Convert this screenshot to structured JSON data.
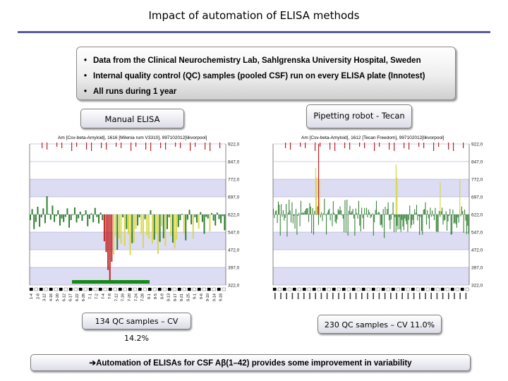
{
  "title": "Impact of automation of ELISA methods",
  "bullets": [
    "Data from the Clinical Neurochemistry Lab, Sahlgrenska University Hospital, Sweden",
    "Internal quality control (QC) samples (pooled CSF) run on every ELISA plate (Innotest)",
    "All runs during 1 year"
  ],
  "labels": {
    "manual": "Manual ELISA",
    "robot": "Pipetting robot - Tecan"
  },
  "stats": {
    "manual": "134 QC samples – CV 14.2%",
    "robot": "230 QC samples – CV 11.0%"
  },
  "conclusion": {
    "arrow": "➔",
    "text": "Automation of ELISAs for CSF Aβ(1–42) provides some improvement in variability"
  },
  "colors": {
    "title_rule": "#5a5a9e",
    "band": "#dcdcf2",
    "bar_green": "#2e7d2e",
    "bar_yellow": "#d8d84a",
    "bar_red": "#c02020"
  },
  "chart_data": [
    {
      "type": "bar",
      "header": "Am [Csv-beta-Amyloid], 1616 [Milenia rum V3310], 997102012[likvorpool]",
      "y_ticks": [
        "922,0",
        "847,0",
        "772,0",
        "697,0",
        "622,0",
        "547,0",
        "472,0",
        "397,0",
        "322,0"
      ],
      "ylim": [
        322,
        922
      ],
      "baseline": 622,
      "x_ticks": [
        "1-4",
        "2-8",
        "3-12",
        "4-16",
        "5-20",
        "6-12",
        "6-17",
        "6-22",
        "6-26",
        "7-1",
        "7-2",
        "7-4",
        "7-8",
        "7-12",
        "7-16",
        "7-20",
        "7-24",
        "7-28",
        "8-1",
        "8-5",
        "8-9",
        "8-13",
        "8-17",
        "8-21",
        "8-25",
        "9-1",
        "9-6",
        "9-10",
        "9-14",
        "9-18"
      ],
      "values": [
        598,
        645,
        560,
        590,
        655,
        570,
        610,
        648,
        585,
        700,
        625,
        600,
        660,
        590,
        615,
        640,
        575,
        605,
        590,
        612,
        648,
        566,
        598,
        622,
        652,
        588,
        606,
        634,
        595,
        618,
        640,
        572,
        604,
        627,
        589,
        650,
        611,
        584,
        630,
        598,
        508,
        462,
        386,
        343,
        421,
        452,
        530,
        472,
        520,
        498,
        610,
        488,
        560,
        538,
        450,
        500,
        502,
        560,
        575,
        610,
        540,
        480,
        602,
        535,
        520,
        640,
        498,
        515,
        540,
        455,
        506,
        572,
        521,
        488,
        560,
        610,
        531,
        502,
        478,
        515,
        569,
        598,
        625,
        540,
        512,
        600,
        642,
        580,
        520,
        610,
        588,
        562,
        632,
        590,
        540,
        612,
        605,
        550,
        628,
        596,
        575,
        630,
        602,
        585,
        615,
        555
      ],
      "colors": [
        "g",
        "g",
        "g",
        "g",
        "g",
        "g",
        "g",
        "g",
        "g",
        "g",
        "g",
        "g",
        "g",
        "g",
        "g",
        "g",
        "g",
        "g",
        "g",
        "g",
        "g",
        "g",
        "g",
        "g",
        "g",
        "g",
        "g",
        "g",
        "g",
        "g",
        "g",
        "g",
        "g",
        "g",
        "g",
        "g",
        "g",
        "g",
        "g",
        "g",
        "r",
        "r",
        "r",
        "r",
        "r",
        "y",
        "y",
        "g",
        "y",
        "y",
        "g",
        "y",
        "g",
        "y",
        "y",
        "g",
        "y",
        "y",
        "g",
        "g",
        "y",
        "y",
        "g",
        "y",
        "y",
        "g",
        "y",
        "g",
        "y",
        "y",
        "g",
        "y",
        "g",
        "y",
        "g",
        "g",
        "y",
        "g",
        "y",
        "y",
        "g",
        "g",
        "g",
        "y",
        "g",
        "g",
        "g",
        "g",
        "y",
        "g",
        "g",
        "y",
        "g",
        "g",
        "g",
        "g",
        "g",
        "y",
        "g",
        "g",
        "g",
        "g",
        "g",
        "g",
        "g",
        "g"
      ]
    },
    {
      "type": "bar",
      "header": "Am [Csv-beta-Amyloid], 1612 [Tecan Freedom], 997102012[likvorpool]",
      "y_ticks": [
        "922,0",
        "847,0",
        "772,0",
        "697,0",
        "622,0",
        "547,0",
        "472,0",
        "397,0",
        "322,0"
      ],
      "ylim": [
        322,
        922
      ],
      "baseline": 622,
      "values": [
        646,
        607,
        636,
        640,
        586,
        677,
        664,
        532,
        666,
        612,
        640,
        596,
        607,
        667,
        528,
        630,
        685,
        639,
        588,
        674,
        584,
        617,
        562,
        646,
        536,
        616,
        629,
        572,
        680,
        628,
        632,
        628,
        637,
        645,
        649,
        649,
        590,
        671,
        656,
        543,
        649,
        536,
        637,
        637,
        620,
        657,
        578,
        670,
        609,
        632,
        594,
        627,
        689,
        619,
        537,
        630,
        641,
        647,
        597,
        626,
        572,
        679,
        629,
        590,
        584,
        601,
        645,
        639,
        656,
        640,
        618,
        604,
        547,
        683,
        545,
        685,
        532,
        638,
        659,
        629,
        636,
        646,
        605,
        532,
        648,
        628,
        604,
        680,
        575,
        550,
        651,
        607,
        560,
        650,
        624,
        650,
        610,
        643,
        632,
        607,
        612,
        627,
        532,
        589,
        642,
        680,
        626,
        633,
        631,
        576,
        579,
        566,
        645,
        522,
        655,
        624,
        646,
        674,
        598,
        560,
        601,
        626,
        674,
        547,
        611,
        548,
        574,
        558,
        611,
        559,
        548,
        599,
        571,
        555,
        605,
        594,
        580,
        548,
        599,
        660,
        563,
        577,
        599,
        581,
        644,
        629,
        663,
        597,
        616,
        535,
        612,
        551,
        536,
        643,
        645,
        674,
        579,
        640,
        606,
        561,
        651,
        612,
        639,
        615,
        598,
        650,
        549,
        549,
        547,
        637,
        612,
        636,
        651,
        579,
        596,
        599,
        636,
        553,
        592,
        615,
        646,
        536,
        538,
        643,
        583,
        587,
        581,
        566,
        609,
        587,
        646,
        614,
        656,
        637,
        544,
        643,
        596,
        539,
        574,
        540
      ],
      "colors": [
        "g",
        "g",
        "g",
        "g",
        "g",
        "g",
        "g",
        "g",
        "g",
        "g",
        "g",
        "g",
        "g",
        "g",
        "g",
        "g",
        "g",
        "g",
        "g",
        "g",
        "g",
        "g",
        "g",
        "g",
        "g",
        "g",
        "g",
        "g",
        "g",
        "g",
        "g",
        "g",
        "g",
        "g",
        "g",
        "g",
        "g",
        "g",
        "g",
        "g",
        "g",
        "g",
        "g",
        "g",
        "g",
        "g",
        "g",
        "g",
        "g",
        "g",
        "g",
        "g",
        "g",
        "g",
        "g",
        "g",
        "g",
        "g",
        "g",
        "g",
        "g",
        "g",
        "g",
        "g",
        "g",
        "g",
        "g",
        "g",
        "g",
        "g",
        "g",
        "g",
        "g",
        "g",
        "g",
        "g",
        "g",
        "g",
        "g",
        "g",
        "g",
        "g",
        "g",
        "g",
        "g",
        "g",
        "g",
        "g",
        "g",
        "g",
        "g",
        "g",
        "g",
        "g",
        "g",
        "g",
        "g",
        "g",
        "g",
        "g",
        "g",
        "g",
        "g",
        "g",
        "g",
        "g",
        "g",
        "g",
        "g",
        "g",
        "g",
        "g",
        "g",
        "g",
        "g",
        "g",
        "g",
        "g",
        "g",
        "g",
        "g",
        "g",
        "g",
        "g",
        "g",
        "g",
        "g",
        "g",
        "g",
        "g",
        "g",
        "g",
        "g",
        "g",
        "g",
        "g",
        "g",
        "g",
        "g",
        "g",
        "g",
        "g",
        "g",
        "g",
        "g",
        "g",
        "g",
        "g",
        "g",
        "g",
        "g",
        "g",
        "g",
        "g",
        "g",
        "g",
        "g",
        "g",
        "g",
        "g",
        "g",
        "g",
        "g",
        "g",
        "g",
        "g",
        "g",
        "g",
        "g",
        "g",
        "g",
        "g",
        "g",
        "g",
        "g",
        "g",
        "g",
        "g",
        "g",
        "g",
        "g",
        "g",
        "g",
        "g",
        "g",
        "g",
        "g",
        "g",
        "g",
        "g",
        "g",
        "g",
        "g",
        "g",
        "g",
        "g",
        "g",
        "g",
        "g",
        "g"
      ],
      "spikes": [
        {
          "index": 46,
          "value": 922,
          "color": "r"
        },
        {
          "index": 43,
          "value": 820,
          "color": "y"
        },
        {
          "index": 44,
          "value": 780,
          "color": "y"
        },
        {
          "index": 47,
          "value": 770,
          "color": "y"
        },
        {
          "index": 125,
          "value": 835,
          "color": "y"
        },
        {
          "index": 126,
          "value": 780,
          "color": "y"
        },
        {
          "index": 170,
          "value": 760,
          "color": "y"
        },
        {
          "index": 190,
          "value": 770,
          "color": "y"
        }
      ]
    }
  ]
}
